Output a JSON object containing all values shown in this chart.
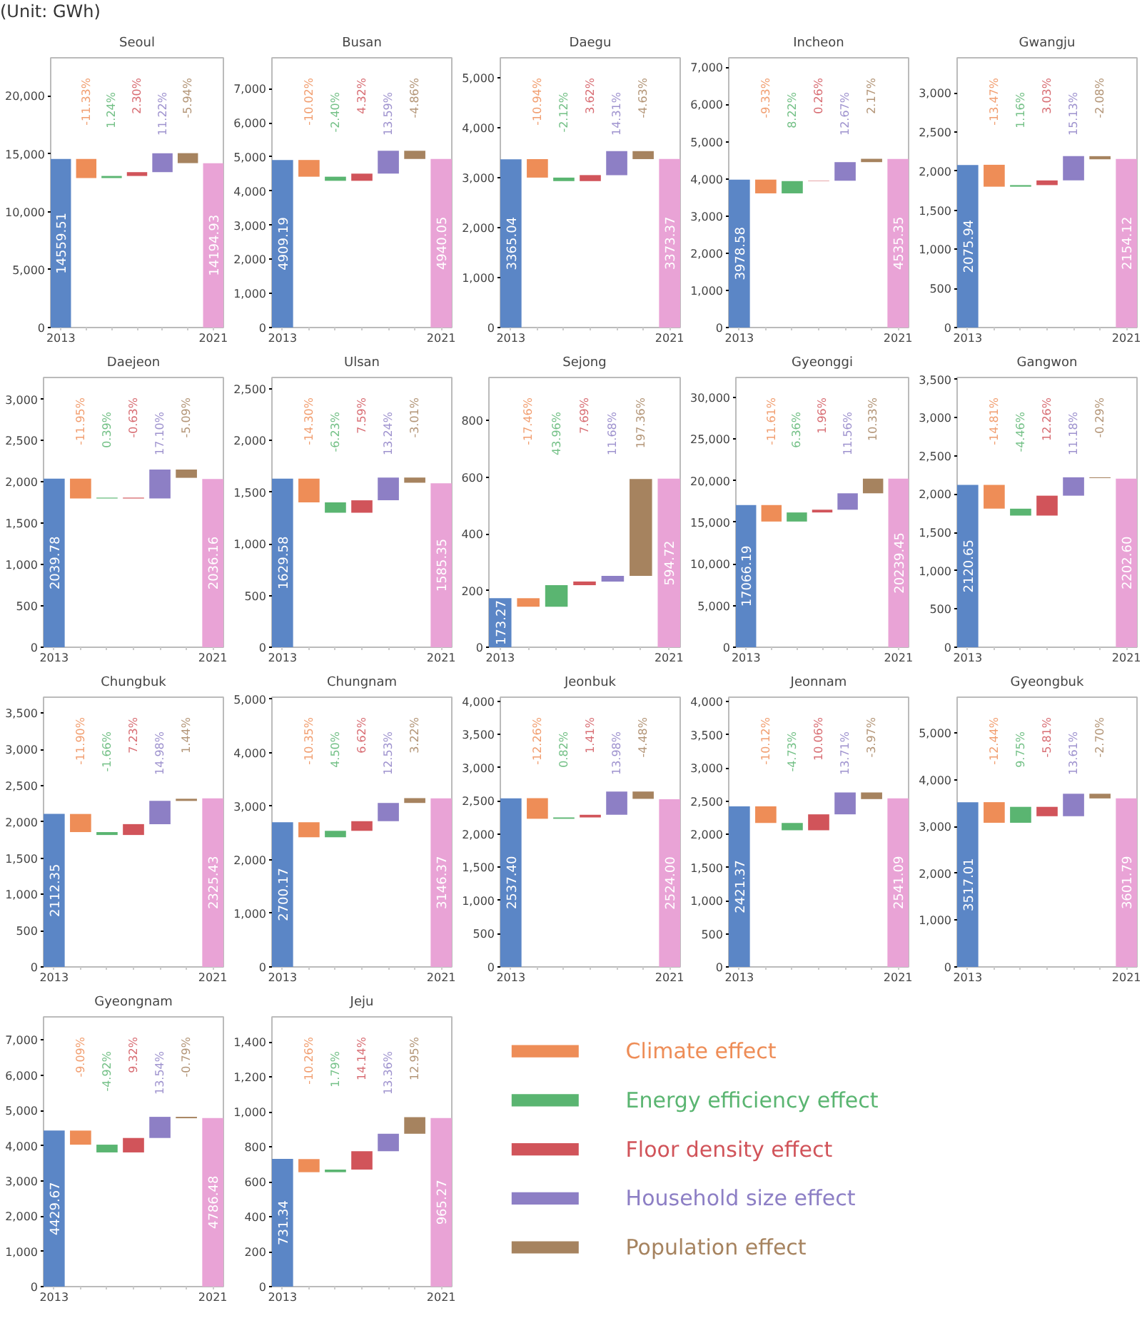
{
  "chart_data": [
    {
      "type": "bar",
      "title": "Seoul",
      "subtitle": "(Unit: GWh)",
      "annotations": [
        "-11.33%",
        "1.24%",
        "2.30%",
        "11.22%",
        "-5.94%"
      ],
      "categories": [
        "2013",
        null,
        null,
        null,
        null,
        null,
        "2021"
      ],
      "values": [
        14559.51,
        -1650,
        180,
        330,
        1630,
        -860,
        14194.93
      ],
      "base": [
        0,
        14560,
        12910,
        13090,
        13420,
        15060,
        0
      ],
      "colors": [
        "#5b86c6",
        "#ee8d57",
        "#5ab571",
        "#d1545a",
        "#8d7fc5",
        "#a6835f",
        "#e9a3d6"
      ],
      "value_labels": [
        "14559.51",
        null,
        null,
        null,
        null,
        null,
        "14194.93"
      ],
      "ylim": [
        0,
        23295
      ],
      "yticks": [
        0,
        {
          "value": 5000,
          "label": "5,000"
        },
        {
          "value": 10000,
          "label": "10,000"
        },
        {
          "value": 15000,
          "label": "15,000"
        },
        {
          "value": 20000,
          "label": "20,000"
        }
      ]
    },
    {
      "type": "bar",
      "title": "Busan",
      "annotations": [
        "-10.02%",
        "-2.40%",
        "4.32%",
        "13.59%",
        "-4.86%"
      ],
      "categories": [
        "2013",
        null,
        null,
        null,
        null,
        null,
        "2021"
      ],
      "values": [
        4909.19,
        -490,
        -120,
        210,
        670,
        -240,
        4940.05
      ],
      "base": [
        0,
        4910,
        4420,
        4300,
        4510,
        5180,
        0
      ],
      "colors": [
        "#5b86c6",
        "#ee8d57",
        "#5ab571",
        "#d1545a",
        "#8d7fc5",
        "#a6835f",
        "#e9a3d6"
      ],
      "value_labels": [
        "4909.19",
        null,
        null,
        null,
        null,
        null,
        "4940.05"
      ],
      "ylim": [
        0,
        7904
      ],
      "yticks": [
        0,
        {
          "value": 1000,
          "label": "1,000"
        },
        {
          "value": 2000,
          "label": "2,000"
        },
        {
          "value": 3000,
          "label": "3,000"
        },
        {
          "value": 4000,
          "label": "4,000"
        },
        {
          "value": 5000,
          "label": "5,000"
        },
        {
          "value": 6000,
          "label": "6,000"
        },
        {
          "value": 7000,
          "label": "7,000"
        }
      ]
    },
    {
      "type": "bar",
      "title": "Daegu",
      "annotations": [
        "-10.94%",
        "-2.12%",
        "3.62%",
        "14.31%",
        "-4.63%"
      ],
      "categories": [
        "2013",
        null,
        null,
        null,
        null,
        null,
        "2021"
      ],
      "values": [
        3365.04,
        -370,
        -70,
        120,
        480,
        -160,
        3373.37
      ],
      "base": [
        0,
        3370,
        3000,
        2930,
        3050,
        3530,
        0
      ],
      "colors": [
        "#5b86c6",
        "#ee8d57",
        "#5ab571",
        "#d1545a",
        "#8d7fc5",
        "#a6835f",
        "#e9a3d6"
      ],
      "value_labels": [
        "3365.04",
        null,
        null,
        null,
        null,
        null,
        "3373.37"
      ],
      "ylim": [
        0,
        5397
      ],
      "yticks": [
        0,
        {
          "value": 1000,
          "label": "1,000"
        },
        {
          "value": 2000,
          "label": "2,000"
        },
        {
          "value": 3000,
          "label": "3,000"
        },
        {
          "value": 4000,
          "label": "4,000"
        },
        {
          "value": 5000,
          "label": "5,000"
        }
      ]
    },
    {
      "type": "bar",
      "title": "Incheon",
      "annotations": [
        "-9.33%",
        "8.22%",
        "0.26%",
        "12.67%",
        "2.17%"
      ],
      "categories": [
        "2013",
        null,
        null,
        null,
        null,
        null,
        "2021"
      ],
      "values": [
        3978.58,
        -370,
        330,
        10,
        500,
        90,
        4535.35
      ],
      "base": [
        0,
        3980,
        3610,
        3940,
        3950,
        4450,
        0
      ],
      "colors": [
        "#5b86c6",
        "#ee8d57",
        "#5ab571",
        "#d1545a",
        "#8d7fc5",
        "#a6835f",
        "#e9a3d6"
      ],
      "value_labels": [
        "3978.58",
        null,
        null,
        null,
        null,
        null,
        "4535.35"
      ],
      "ylim": [
        0,
        7257
      ],
      "yticks": [
        0,
        {
          "value": 1000,
          "label": "1,000"
        },
        {
          "value": 2000,
          "label": "2,000"
        },
        {
          "value": 3000,
          "label": "3,000"
        },
        {
          "value": 4000,
          "label": "4,000"
        },
        {
          "value": 5000,
          "label": "5,000"
        },
        {
          "value": 6000,
          "label": "6,000"
        },
        {
          "value": 7000,
          "label": "7,000"
        }
      ]
    },
    {
      "type": "bar",
      "title": "Gwangju",
      "annotations": [
        "-13.47%",
        "1.16%",
        "3.03%",
        "15.13%",
        "-2.08%"
      ],
      "categories": [
        "2013",
        null,
        null,
        null,
        null,
        null,
        "2021"
      ],
      "values": [
        2075.94,
        -280,
        20,
        60,
        310,
        -40,
        2154.12
      ],
      "base": [
        0,
        2080,
        1800,
        1820,
        1880,
        2190,
        0
      ],
      "colors": [
        "#5b86c6",
        "#ee8d57",
        "#5ab571",
        "#d1545a",
        "#8d7fc5",
        "#a6835f",
        "#e9a3d6"
      ],
      "value_labels": [
        "2075.94",
        null,
        null,
        null,
        null,
        null,
        "2154.12"
      ],
      "ylim": [
        0,
        3447
      ],
      "yticks": [
        0,
        500,
        {
          "value": 1000,
          "label": "1,000"
        },
        {
          "value": 1500,
          "label": "1,500"
        },
        {
          "value": 2000,
          "label": "2,000"
        },
        {
          "value": 2500,
          "label": "2,500"
        },
        {
          "value": 3000,
          "label": "3,000"
        }
      ]
    },
    {
      "type": "bar",
      "title": "Daejeon",
      "annotations": [
        "-11.95%",
        "0.39%",
        "-0.63%",
        "17.10%",
        "-5.09%"
      ],
      "categories": [
        "2013",
        null,
        null,
        null,
        null,
        null,
        "2021"
      ],
      "values": [
        2039.78,
        -240,
        10,
        -10,
        350,
        -100,
        2036.16
      ],
      "base": [
        0,
        2040,
        1800,
        1810,
        1800,
        2150,
        0
      ],
      "colors": [
        "#5b86c6",
        "#ee8d57",
        "#5ab571",
        "#d1545a",
        "#8d7fc5",
        "#a6835f",
        "#e9a3d6"
      ],
      "value_labels": [
        "2039.78",
        null,
        null,
        null,
        null,
        null,
        "2036.16"
      ],
      "ylim": [
        0,
        3264
      ],
      "yticks": [
        0,
        500,
        {
          "value": 1000,
          "label": "1,000"
        },
        {
          "value": 1500,
          "label": "1,500"
        },
        {
          "value": 2000,
          "label": "2,000"
        },
        {
          "value": 2500,
          "label": "2,500"
        },
        {
          "value": 3000,
          "label": "3,000"
        }
      ]
    },
    {
      "type": "bar",
      "title": "Ulsan",
      "annotations": [
        "-14.30%",
        "-6.23%",
        "7.59%",
        "13.24%",
        "-3.01%"
      ],
      "categories": [
        "2013",
        null,
        null,
        null,
        null,
        null,
        "2021"
      ],
      "values": [
        1629.58,
        -230,
        -100,
        120,
        220,
        -50,
        1585.35
      ],
      "base": [
        0,
        1630,
        1400,
        1300,
        1420,
        1640,
        0
      ],
      "colors": [
        "#5b86c6",
        "#ee8d57",
        "#5ab571",
        "#d1545a",
        "#8d7fc5",
        "#a6835f",
        "#e9a3d6"
      ],
      "value_labels": [
        "1629.58",
        null,
        null,
        null,
        null,
        null,
        "1585.35"
      ],
      "ylim": [
        0,
        2607
      ],
      "yticks": [
        0,
        500,
        {
          "value": 1000,
          "label": "1,000"
        },
        {
          "value": 1500,
          "label": "1,500"
        },
        {
          "value": 2000,
          "label": "2,000"
        },
        {
          "value": 2500,
          "label": "2,500"
        }
      ]
    },
    {
      "type": "bar",
      "title": "Sejong",
      "annotations": [
        "-17.46%",
        "43.96%",
        "7.69%",
        "11.68%",
        "197.36%"
      ],
      "categories": [
        "2013",
        null,
        null,
        null,
        null,
        null,
        "2021"
      ],
      "values": [
        173.27,
        -30,
        76,
        13,
        20,
        342,
        594.72
      ],
      "base": [
        0,
        173,
        143,
        219,
        232,
        252,
        0
      ],
      "colors": [
        "#5b86c6",
        "#ee8d57",
        "#5ab571",
        "#d1545a",
        "#8d7fc5",
        "#a6835f",
        "#e9a3d6"
      ],
      "value_labels": [
        "173.27",
        null,
        null,
        null,
        null,
        null,
        "594.72"
      ],
      "ylim": [
        0,
        952
      ],
      "yticks": [
        0,
        200,
        400,
        600,
        800
      ]
    },
    {
      "type": "bar",
      "title": "Gyeonggi",
      "annotations": [
        "-11.61%",
        "6.36%",
        "1.96%",
        "11.56%",
        "10.33%"
      ],
      "categories": [
        "2013",
        null,
        null,
        null,
        null,
        null,
        "2021"
      ],
      "values": [
        17066.19,
        -1980,
        1090,
        330,
        1970,
        1760,
        20239.45
      ],
      "base": [
        0,
        17070,
        15090,
        16180,
        16510,
        18480,
        0
      ],
      "colors": [
        "#5b86c6",
        "#ee8d57",
        "#5ab571",
        "#d1545a",
        "#8d7fc5",
        "#a6835f",
        "#e9a3d6"
      ],
      "value_labels": [
        "17066.19",
        null,
        null,
        null,
        null,
        null,
        "20239.45"
      ],
      "ylim": [
        0,
        32383
      ],
      "yticks": [
        0,
        {
          "value": 5000,
          "label": "5,000"
        },
        {
          "value": 10000,
          "label": "10,000"
        },
        {
          "value": 15000,
          "label": "15,000"
        },
        {
          "value": 20000,
          "label": "20,000"
        },
        {
          "value": 25000,
          "label": "25,000"
        },
        {
          "value": 30000,
          "label": "30,000"
        }
      ]
    },
    {
      "type": "bar",
      "title": "Gangwon",
      "annotations": [
        "-14.81%",
        "-4.46%",
        "12.26%",
        "11.18%",
        "-0.29%"
      ],
      "categories": [
        "2013",
        null,
        null,
        null,
        null,
        null,
        "2021"
      ],
      "values": [
        2120.65,
        -310,
        -90,
        260,
        240,
        -10,
        2202.6
      ],
      "base": [
        0,
        2120,
        1810,
        1720,
        1980,
        2220,
        0
      ],
      "colors": [
        "#5b86c6",
        "#ee8d57",
        "#5ab571",
        "#d1545a",
        "#8d7fc5",
        "#a6835f",
        "#e9a3d6"
      ],
      "value_labels": [
        "2120.65",
        null,
        null,
        null,
        null,
        null,
        "2202.60"
      ],
      "ylim": [
        0,
        3524
      ],
      "yticks": [
        0,
        500,
        {
          "value": 1000,
          "label": "1,000"
        },
        {
          "value": 1500,
          "label": "1,500"
        },
        {
          "value": 2000,
          "label": "2,000"
        },
        {
          "value": 2500,
          "label": "2,500"
        },
        {
          "value": 3000,
          "label": "3,000"
        },
        {
          "value": 3500,
          "label": "3,500"
        }
      ]
    },
    {
      "type": "bar",
      "title": "Chungbuk",
      "annotations": [
        "-11.90%",
        "-1.66%",
        "7.23%",
        "14.98%",
        "1.44%"
      ],
      "categories": [
        "2013",
        null,
        null,
        null,
        null,
        null,
        "2021"
      ],
      "values": [
        2112.35,
        -250,
        -40,
        150,
        320,
        30,
        2325.43
      ],
      "base": [
        0,
        2110,
        1860,
        1820,
        1970,
        2290,
        0
      ],
      "colors": [
        "#5b86c6",
        "#ee8d57",
        "#5ab571",
        "#d1545a",
        "#8d7fc5",
        "#a6835f",
        "#e9a3d6"
      ],
      "value_labels": [
        "2112.35",
        null,
        null,
        null,
        null,
        null,
        "2325.43"
      ],
      "ylim": [
        0,
        3721
      ],
      "yticks": [
        0,
        500,
        {
          "value": 1000,
          "label": "1,000"
        },
        {
          "value": 1500,
          "label": "1,500"
        },
        {
          "value": 2000,
          "label": "2,000"
        },
        {
          "value": 2500,
          "label": "2,500"
        },
        {
          "value": 3000,
          "label": "3,000"
        },
        {
          "value": 3500,
          "label": "3,500"
        }
      ]
    },
    {
      "type": "bar",
      "title": "Chungnam",
      "annotations": [
        "-10.35%",
        "4.50%",
        "6.62%",
        "12.53%",
        "3.22%"
      ],
      "categories": [
        "2013",
        null,
        null,
        null,
        null,
        null,
        "2021"
      ],
      "values": [
        2700.17,
        -280,
        120,
        180,
        340,
        90,
        3146.37
      ],
      "base": [
        0,
        2700,
        2420,
        2540,
        2720,
        3060,
        0
      ],
      "colors": [
        "#5b86c6",
        "#ee8d57",
        "#5ab571",
        "#d1545a",
        "#8d7fc5",
        "#a6835f",
        "#e9a3d6"
      ],
      "value_labels": [
        "2700.17",
        null,
        null,
        null,
        null,
        null,
        "3146.37"
      ],
      "ylim": [
        0,
        5034
      ],
      "yticks": [
        0,
        {
          "value": 1000,
          "label": "1,000"
        },
        {
          "value": 2000,
          "label": "2,000"
        },
        {
          "value": 3000,
          "label": "3,000"
        },
        {
          "value": 4000,
          "label": "4,000"
        },
        {
          "value": 5000,
          "label": "5,000"
        }
      ]
    },
    {
      "type": "bar",
      "title": "Jeonbuk",
      "annotations": [
        "-12.26%",
        "0.82%",
        "1.41%",
        "13.98%",
        "-4.48%"
      ],
      "categories": [
        "2013",
        null,
        null,
        null,
        null,
        null,
        "2021"
      ],
      "values": [
        2537.4,
        -310,
        20,
        40,
        350,
        -110,
        2524.0
      ],
      "base": [
        0,
        2540,
        2230,
        2250,
        2290,
        2640,
        0
      ],
      "colors": [
        "#5b86c6",
        "#ee8d57",
        "#5ab571",
        "#d1545a",
        "#8d7fc5",
        "#a6835f",
        "#e9a3d6"
      ],
      "value_labels": [
        "2537.40",
        null,
        null,
        null,
        null,
        null,
        "2524.00"
      ],
      "ylim": [
        0,
        4060
      ],
      "yticks": [
        0,
        500,
        {
          "value": 1000,
          "label": "1,000"
        },
        {
          "value": 1500,
          "label": "1,500"
        },
        {
          "value": 2000,
          "label": "2,000"
        },
        {
          "value": 2500,
          "label": "2,500"
        },
        {
          "value": 3000,
          "label": "3,000"
        },
        {
          "value": 3500,
          "label": "3,500"
        },
        {
          "value": 4000,
          "label": "4,000"
        }
      ]
    },
    {
      "type": "bar",
      "title": "Jeonnam",
      "annotations": [
        "-10.12%",
        "-4.73%",
        "10.06%",
        "13.71%",
        "-3.97%"
      ],
      "categories": [
        "2013",
        null,
        null,
        null,
        null,
        null,
        "2021"
      ],
      "values": [
        2421.37,
        -250,
        -110,
        240,
        330,
        -100,
        2541.09
      ],
      "base": [
        0,
        2420,
        2170,
        2060,
        2300,
        2630,
        0
      ],
      "colors": [
        "#5b86c6",
        "#ee8d57",
        "#5ab571",
        "#d1545a",
        "#8d7fc5",
        "#a6835f",
        "#e9a3d6"
      ],
      "value_labels": [
        "2421.37",
        null,
        null,
        null,
        null,
        null,
        "2541.09"
      ],
      "ylim": [
        0,
        4066
      ],
      "yticks": [
        0,
        500,
        {
          "value": 1000,
          "label": "1,000"
        },
        {
          "value": 1500,
          "label": "1,500"
        },
        {
          "value": 2000,
          "label": "2,000"
        },
        {
          "value": 2500,
          "label": "2,500"
        },
        {
          "value": 3000,
          "label": "3,000"
        },
        {
          "value": 3500,
          "label": "3,500"
        },
        {
          "value": 4000,
          "label": "4,000"
        }
      ]
    },
    {
      "type": "bar",
      "title": "Gyeongbuk",
      "annotations": [
        "-12.44%",
        "9.75%",
        "-5.81%",
        "13.61%",
        "-2.70%"
      ],
      "categories": [
        "2013",
        null,
        null,
        null,
        null,
        null,
        "2021"
      ],
      "values": [
        3517.01,
        -440,
        340,
        -200,
        480,
        -100,
        3601.79
      ],
      "base": [
        0,
        3520,
        3080,
        3420,
        3220,
        3700,
        0
      ],
      "colors": [
        "#5b86c6",
        "#ee8d57",
        "#5ab571",
        "#d1545a",
        "#8d7fc5",
        "#a6835f",
        "#e9a3d6"
      ],
      "value_labels": [
        "3517.01",
        null,
        null,
        null,
        null,
        null,
        "3601.79"
      ],
      "ylim": [
        0,
        5763
      ],
      "yticks": [
        0,
        {
          "value": 1000,
          "label": "1,000"
        },
        {
          "value": 2000,
          "label": "2,000"
        },
        {
          "value": 3000,
          "label": "3,000"
        },
        {
          "value": 4000,
          "label": "4,000"
        },
        {
          "value": 5000,
          "label": "5,000"
        }
      ]
    },
    {
      "type": "bar",
      "title": "Gyeongnam",
      "annotations": [
        "-9.09%",
        "-4.92%",
        "9.32%",
        "13.54%",
        "-0.79%"
      ],
      "categories": [
        "2013",
        null,
        null,
        null,
        null,
        null,
        "2021"
      ],
      "values": [
        4429.67,
        -400,
        -220,
        410,
        600,
        -40,
        4786.48
      ],
      "base": [
        0,
        4430,
        4030,
        3810,
        4220,
        4820,
        0
      ],
      "colors": [
        "#5b86c6",
        "#ee8d57",
        "#5ab571",
        "#d1545a",
        "#8d7fc5",
        "#a6835f",
        "#e9a3d6"
      ],
      "value_labels": [
        "4429.67",
        null,
        null,
        null,
        null,
        null,
        "4786.48"
      ],
      "ylim": [
        0,
        7658
      ],
      "yticks": [
        0,
        {
          "value": 1000,
          "label": "1,000"
        },
        {
          "value": 2000,
          "label": "2,000"
        },
        {
          "value": 3000,
          "label": "3,000"
        },
        {
          "value": 4000,
          "label": "4,000"
        },
        {
          "value": 5000,
          "label": "5,000"
        },
        {
          "value": 6000,
          "label": "6,000"
        },
        {
          "value": 7000,
          "label": "7,000"
        }
      ]
    },
    {
      "type": "bar",
      "title": "Jeju",
      "annotations": [
        "-10.26%",
        "1.79%",
        "14.14%",
        "13.36%",
        "12.95%"
      ],
      "categories": [
        "2013",
        null,
        null,
        null,
        null,
        null,
        "2021"
      ],
      "values": [
        731.34,
        -75,
        15,
        105,
        100,
        95,
        965.27
      ],
      "base": [
        0,
        730,
        655,
        670,
        775,
        875,
        0
      ],
      "colors": [
        "#5b86c6",
        "#ee8d57",
        "#5ab571",
        "#d1545a",
        "#8d7fc5",
        "#a6835f",
        "#e9a3d6"
      ],
      "value_labels": [
        "731.34",
        null,
        null,
        null,
        null,
        null,
        "965.27"
      ],
      "ylim": [
        0,
        1544
      ],
      "yticks": [
        0,
        200,
        400,
        600,
        800,
        {
          "value": 1000,
          "label": "1,000"
        },
        {
          "value": 1200,
          "label": "1,200"
        },
        {
          "value": 1400,
          "label": "1,400"
        }
      ]
    },
    {
      "type": "other",
      "categories": [
        "Climate effect",
        "Energy efficiency effect",
        "Floor density effect",
        "Household size effect",
        "Population effect"
      ],
      "colors": [
        "#ee8d57",
        "#5ab571",
        "#d1545a",
        "#8d7fc5",
        "#a6835f"
      ]
    }
  ]
}
